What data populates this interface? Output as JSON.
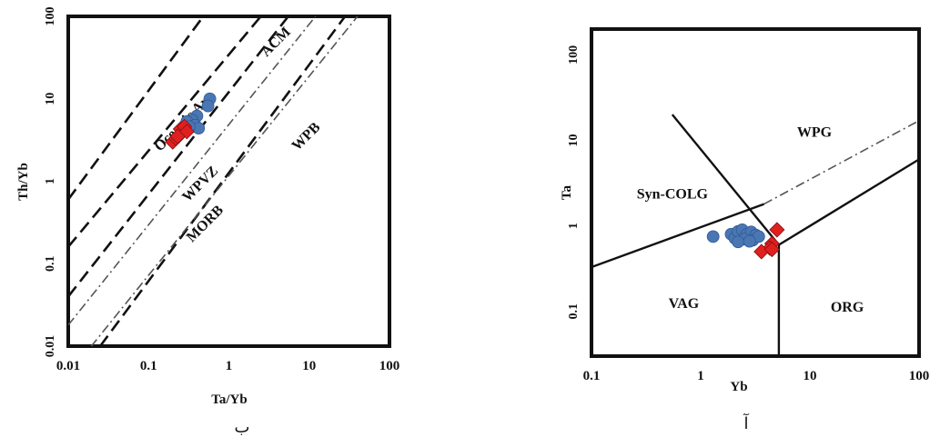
{
  "captions": {
    "left": "ب",
    "right": "آ"
  },
  "colors": {
    "circle": "#4a77b4",
    "diamond": "#e02020",
    "line": "#111111"
  },
  "chart_data": [
    {
      "type": "scatter",
      "panel": "left",
      "xlabel": "Ta/Yb",
      "ylabel": "Th/Yb",
      "xscale": "log",
      "yscale": "log",
      "xlim": [
        0.01,
        100
      ],
      "ylim": [
        0.01,
        100
      ],
      "x_ticks": [
        "0.01",
        "0.1",
        "1",
        "10",
        "100"
      ],
      "y_ticks": [
        "0.01",
        "0.1",
        "1",
        "10",
        "100"
      ],
      "regions": [
        {
          "label": "Oceanic Arc",
          "x": 0.3,
          "y": 4.8,
          "angle": -45
        },
        {
          "label": "ACM",
          "x": 4.2,
          "y": 45,
          "angle": -45
        },
        {
          "label": "WPVZ",
          "x": 0.48,
          "y": 0.85,
          "angle": -45
        },
        {
          "label": "MORB",
          "x": 0.55,
          "y": 0.28,
          "angle": -45
        },
        {
          "label": "WPB",
          "x": 10,
          "y": 3.2,
          "angle": -45
        }
      ],
      "boundaries": [
        {
          "style": "dashed",
          "points": [
            [
              0.01,
              0.6
            ],
            [
              0.48,
              100
            ]
          ]
        },
        {
          "style": "dashed",
          "points": [
            [
              0.01,
              0.16
            ],
            [
              2.5,
              100
            ]
          ]
        },
        {
          "style": "dashed",
          "points": [
            [
              0.01,
              0.04
            ],
            [
              5.5,
              100
            ]
          ]
        },
        {
          "style": "dashdot",
          "points": [
            [
              0.01,
              0.018
            ],
            [
              12,
              100
            ]
          ]
        },
        {
          "style": "dashed",
          "points": [
            [
              0.025,
              0.01
            ],
            [
              28,
              100
            ]
          ]
        },
        {
          "style": "dashdot",
          "points": [
            [
              0.01,
              0.0045
            ],
            [
              40,
              100
            ]
          ]
        }
      ],
      "series": [
        {
          "marker": "circle",
          "points": [
            [
              0.58,
              10
            ],
            [
              0.55,
              8.2
            ],
            [
              0.4,
              6.2
            ],
            [
              0.35,
              5.5
            ],
            [
              0.3,
              5.3
            ],
            [
              0.38,
              4.8
            ],
            [
              0.42,
              4.4
            ],
            [
              0.32,
              4.6
            ],
            [
              0.28,
              4.2
            ]
          ]
        },
        {
          "marker": "diamond",
          "points": [
            [
              0.2,
              3.0
            ],
            [
              0.22,
              3.3
            ],
            [
              0.24,
              3.6
            ],
            [
              0.26,
              3.9
            ],
            [
              0.25,
              4.3
            ],
            [
              0.28,
              4.6
            ],
            [
              0.3,
              4.0
            ],
            [
              0.23,
              3.5
            ]
          ]
        }
      ]
    },
    {
      "type": "scatter",
      "panel": "right",
      "xlabel": "Yb",
      "ylabel": "Ta",
      "xscale": "log",
      "yscale": "log",
      "xlim": [
        0.1,
        100
      ],
      "ylim": [
        0.03,
        200
      ],
      "x_ticks": [
        "0.1",
        "1",
        "10",
        "100"
      ],
      "y_ticks": [
        "0.1",
        "1",
        "10",
        "100"
      ],
      "regions": [
        {
          "label": "WPG",
          "x": 11,
          "y": 11
        },
        {
          "label": "Syn-COLG",
          "x": 0.55,
          "y": 2.1
        },
        {
          "label": "VAG",
          "x": 0.7,
          "y": 0.11
        },
        {
          "label": "ORG",
          "x": 22,
          "y": 0.1
        }
      ],
      "boundaries": [
        {
          "style": "solid",
          "points": [
            [
              0.1,
              0.33
            ],
            [
              3.8,
              1.8
            ]
          ]
        },
        {
          "style": "dashdot",
          "points": [
            [
              3.8,
              1.8
            ],
            [
              100,
              17
            ]
          ]
        },
        {
          "style": "solid",
          "points": [
            [
              0.55,
              20
            ],
            [
              5.2,
              0.6
            ]
          ]
        },
        {
          "style": "solid",
          "points": [
            [
              5.2,
              0.6
            ],
            [
              100,
              6
            ]
          ]
        },
        {
          "style": "solid",
          "points": [
            [
              5.2,
              0.6
            ],
            [
              5.2,
              0.03
            ]
          ]
        }
      ],
      "series": [
        {
          "marker": "circle",
          "points": [
            [
              1.3,
              0.75
            ],
            [
              1.9,
              0.8
            ],
            [
              2.05,
              0.72
            ],
            [
              2.2,
              0.86
            ],
            [
              2.4,
              0.9
            ],
            [
              2.65,
              0.8
            ],
            [
              2.9,
              0.85
            ],
            [
              3.2,
              0.78
            ],
            [
              2.5,
              0.7
            ],
            [
              3.0,
              0.68
            ],
            [
              3.4,
              0.75
            ],
            [
              2.2,
              0.65
            ],
            [
              2.8,
              0.66
            ]
          ]
        },
        {
          "marker": "diamond",
          "points": [
            [
              5.0,
              0.9
            ],
            [
              4.5,
              0.62
            ],
            [
              4.3,
              0.55
            ],
            [
              3.6,
              0.5
            ],
            [
              4.5,
              0.53
            ]
          ]
        }
      ]
    }
  ]
}
